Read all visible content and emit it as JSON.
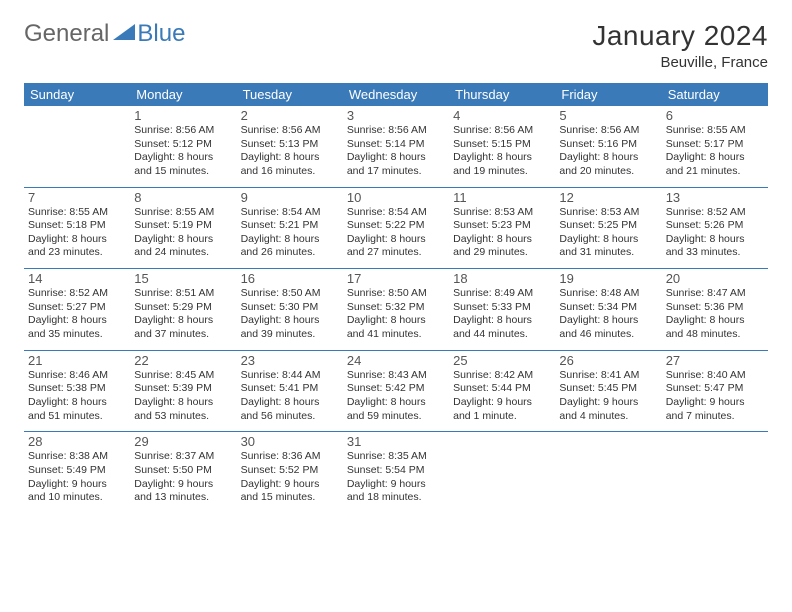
{
  "logo": {
    "part1": "General",
    "part2": "Blue"
  },
  "title": "January 2024",
  "location": "Beuville, France",
  "colors": {
    "brand_blue": "#3a7ab8",
    "text": "#333333",
    "bg": "#ffffff"
  },
  "day_headers": [
    "Sunday",
    "Monday",
    "Tuesday",
    "Wednesday",
    "Thursday",
    "Friday",
    "Saturday"
  ],
  "weeks": [
    [
      {
        "n": "",
        "sr": "",
        "ss": "",
        "dl": ""
      },
      {
        "n": "1",
        "sr": "Sunrise: 8:56 AM",
        "ss": "Sunset: 5:12 PM",
        "dl": "Daylight: 8 hours and 15 minutes."
      },
      {
        "n": "2",
        "sr": "Sunrise: 8:56 AM",
        "ss": "Sunset: 5:13 PM",
        "dl": "Daylight: 8 hours and 16 minutes."
      },
      {
        "n": "3",
        "sr": "Sunrise: 8:56 AM",
        "ss": "Sunset: 5:14 PM",
        "dl": "Daylight: 8 hours and 17 minutes."
      },
      {
        "n": "4",
        "sr": "Sunrise: 8:56 AM",
        "ss": "Sunset: 5:15 PM",
        "dl": "Daylight: 8 hours and 19 minutes."
      },
      {
        "n": "5",
        "sr": "Sunrise: 8:56 AM",
        "ss": "Sunset: 5:16 PM",
        "dl": "Daylight: 8 hours and 20 minutes."
      },
      {
        "n": "6",
        "sr": "Sunrise: 8:55 AM",
        "ss": "Sunset: 5:17 PM",
        "dl": "Daylight: 8 hours and 21 minutes."
      }
    ],
    [
      {
        "n": "7",
        "sr": "Sunrise: 8:55 AM",
        "ss": "Sunset: 5:18 PM",
        "dl": "Daylight: 8 hours and 23 minutes."
      },
      {
        "n": "8",
        "sr": "Sunrise: 8:55 AM",
        "ss": "Sunset: 5:19 PM",
        "dl": "Daylight: 8 hours and 24 minutes."
      },
      {
        "n": "9",
        "sr": "Sunrise: 8:54 AM",
        "ss": "Sunset: 5:21 PM",
        "dl": "Daylight: 8 hours and 26 minutes."
      },
      {
        "n": "10",
        "sr": "Sunrise: 8:54 AM",
        "ss": "Sunset: 5:22 PM",
        "dl": "Daylight: 8 hours and 27 minutes."
      },
      {
        "n": "11",
        "sr": "Sunrise: 8:53 AM",
        "ss": "Sunset: 5:23 PM",
        "dl": "Daylight: 8 hours and 29 minutes."
      },
      {
        "n": "12",
        "sr": "Sunrise: 8:53 AM",
        "ss": "Sunset: 5:25 PM",
        "dl": "Daylight: 8 hours and 31 minutes."
      },
      {
        "n": "13",
        "sr": "Sunrise: 8:52 AM",
        "ss": "Sunset: 5:26 PM",
        "dl": "Daylight: 8 hours and 33 minutes."
      }
    ],
    [
      {
        "n": "14",
        "sr": "Sunrise: 8:52 AM",
        "ss": "Sunset: 5:27 PM",
        "dl": "Daylight: 8 hours and 35 minutes."
      },
      {
        "n": "15",
        "sr": "Sunrise: 8:51 AM",
        "ss": "Sunset: 5:29 PM",
        "dl": "Daylight: 8 hours and 37 minutes."
      },
      {
        "n": "16",
        "sr": "Sunrise: 8:50 AM",
        "ss": "Sunset: 5:30 PM",
        "dl": "Daylight: 8 hours and 39 minutes."
      },
      {
        "n": "17",
        "sr": "Sunrise: 8:50 AM",
        "ss": "Sunset: 5:32 PM",
        "dl": "Daylight: 8 hours and 41 minutes."
      },
      {
        "n": "18",
        "sr": "Sunrise: 8:49 AM",
        "ss": "Sunset: 5:33 PM",
        "dl": "Daylight: 8 hours and 44 minutes."
      },
      {
        "n": "19",
        "sr": "Sunrise: 8:48 AM",
        "ss": "Sunset: 5:34 PM",
        "dl": "Daylight: 8 hours and 46 minutes."
      },
      {
        "n": "20",
        "sr": "Sunrise: 8:47 AM",
        "ss": "Sunset: 5:36 PM",
        "dl": "Daylight: 8 hours and 48 minutes."
      }
    ],
    [
      {
        "n": "21",
        "sr": "Sunrise: 8:46 AM",
        "ss": "Sunset: 5:38 PM",
        "dl": "Daylight: 8 hours and 51 minutes."
      },
      {
        "n": "22",
        "sr": "Sunrise: 8:45 AM",
        "ss": "Sunset: 5:39 PM",
        "dl": "Daylight: 8 hours and 53 minutes."
      },
      {
        "n": "23",
        "sr": "Sunrise: 8:44 AM",
        "ss": "Sunset: 5:41 PM",
        "dl": "Daylight: 8 hours and 56 minutes."
      },
      {
        "n": "24",
        "sr": "Sunrise: 8:43 AM",
        "ss": "Sunset: 5:42 PM",
        "dl": "Daylight: 8 hours and 59 minutes."
      },
      {
        "n": "25",
        "sr": "Sunrise: 8:42 AM",
        "ss": "Sunset: 5:44 PM",
        "dl": "Daylight: 9 hours and 1 minute."
      },
      {
        "n": "26",
        "sr": "Sunrise: 8:41 AM",
        "ss": "Sunset: 5:45 PM",
        "dl": "Daylight: 9 hours and 4 minutes."
      },
      {
        "n": "27",
        "sr": "Sunrise: 8:40 AM",
        "ss": "Sunset: 5:47 PM",
        "dl": "Daylight: 9 hours and 7 minutes."
      }
    ],
    [
      {
        "n": "28",
        "sr": "Sunrise: 8:38 AM",
        "ss": "Sunset: 5:49 PM",
        "dl": "Daylight: 9 hours and 10 minutes."
      },
      {
        "n": "29",
        "sr": "Sunrise: 8:37 AM",
        "ss": "Sunset: 5:50 PM",
        "dl": "Daylight: 9 hours and 13 minutes."
      },
      {
        "n": "30",
        "sr": "Sunrise: 8:36 AM",
        "ss": "Sunset: 5:52 PM",
        "dl": "Daylight: 9 hours and 15 minutes."
      },
      {
        "n": "31",
        "sr": "Sunrise: 8:35 AM",
        "ss": "Sunset: 5:54 PM",
        "dl": "Daylight: 9 hours and 18 minutes."
      },
      {
        "n": "",
        "sr": "",
        "ss": "",
        "dl": ""
      },
      {
        "n": "",
        "sr": "",
        "ss": "",
        "dl": ""
      },
      {
        "n": "",
        "sr": "",
        "ss": "",
        "dl": ""
      }
    ]
  ]
}
